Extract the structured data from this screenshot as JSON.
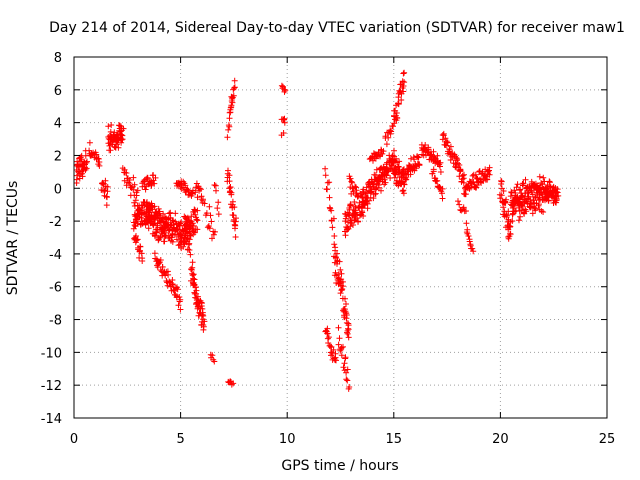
{
  "chart_data": {
    "type": "scatter",
    "title": "Day 214 of 2014, Sidereal Day-to-day VTEC variation (SDTVAR) for receiver maw1",
    "xlabel": "GPS time / hours",
    "ylabel": "SDTVAR / TECUs",
    "xlim": [
      0,
      25
    ],
    "ylim": [
      -14,
      8
    ],
    "xticks": [
      0,
      5,
      10,
      15,
      20,
      25
    ],
    "yticks": [
      -14,
      -12,
      -10,
      -8,
      -6,
      -4,
      -2,
      0,
      2,
      4,
      6,
      8
    ],
    "grid": true,
    "marker": "+",
    "color": "#ff0000",
    "series": [
      {
        "name": "SDTVAR",
        "segments": [
          {
            "x0": 0.1,
            "x1": 0.6,
            "y_start": 1.0,
            "y_end": 1.6,
            "spread": 0.9,
            "n": 40
          },
          {
            "x0": 0.7,
            "x1": 1.2,
            "y_start": 2.4,
            "y_end": 1.5,
            "spread": 0.5,
            "n": 20
          },
          {
            "x0": 1.3,
            "x1": 1.6,
            "y_start": 0.5,
            "y_end": -0.6,
            "spread": 0.8,
            "n": 16
          },
          {
            "x0": 1.6,
            "x1": 2.3,
            "y_start": 3.0,
            "y_end": 3.2,
            "spread": 0.9,
            "n": 60
          },
          {
            "x0": 2.3,
            "x1": 3.0,
            "y_start": 1.0,
            "y_end": -0.4,
            "spread": 0.7,
            "n": 25
          },
          {
            "x0": 2.8,
            "x1": 3.6,
            "y_start": -1.8,
            "y_end": -1.5,
            "spread": 1.0,
            "n": 70
          },
          {
            "x0": 2.8,
            "x1": 3.2,
            "y_start": -3.0,
            "y_end": -4.2,
            "spread": 0.6,
            "n": 20
          },
          {
            "x0": 3.4,
            "x1": 4.3,
            "y_start": -1.5,
            "y_end": -2.5,
            "spread": 1.3,
            "n": 110
          },
          {
            "x0": 3.2,
            "x1": 3.8,
            "y_start": 0.1,
            "y_end": 0.6,
            "spread": 0.5,
            "n": 25
          },
          {
            "x0": 3.8,
            "x1": 5.0,
            "y_start": -4.2,
            "y_end": -6.9,
            "spread": 0.6,
            "n": 50
          },
          {
            "x0": 4.3,
            "x1": 5.5,
            "y_start": -2.2,
            "y_end": -3.0,
            "spread": 1.2,
            "n": 110
          },
          {
            "x0": 4.8,
            "x1": 5.6,
            "y_start": 0.3,
            "y_end": -0.4,
            "spread": 0.4,
            "n": 30
          },
          {
            "x0": 5.2,
            "x1": 5.8,
            "y_start": -2.6,
            "y_end": -1.8,
            "spread": 0.9,
            "n": 40
          },
          {
            "x0": 5.5,
            "x1": 6.1,
            "y_start": -5.0,
            "y_end": -8.5,
            "spread": 1.0,
            "n": 60
          },
          {
            "x0": 5.7,
            "x1": 6.1,
            "y_start": 0.2,
            "y_end": -0.8,
            "spread": 0.7,
            "n": 15
          },
          {
            "x0": 6.2,
            "x1": 6.6,
            "y_start": -1.5,
            "y_end": -2.8,
            "spread": 0.9,
            "n": 12
          },
          {
            "x0": 6.4,
            "x1": 6.6,
            "y_start": -10.2,
            "y_end": -10.4,
            "spread": 0.2,
            "n": 5
          },
          {
            "x0": 6.6,
            "x1": 6.8,
            "y_start": 0.4,
            "y_end": -1.3,
            "spread": 0.6,
            "n": 6
          },
          {
            "x0": 7.2,
            "x1": 7.4,
            "y_start": 3.3,
            "y_end": 5.5,
            "spread": 0.4,
            "n": 10
          },
          {
            "x0": 7.35,
            "x1": 7.55,
            "y_start": 4.7,
            "y_end": 6.3,
            "spread": 0.3,
            "n": 12
          },
          {
            "x0": 7.2,
            "x1": 7.6,
            "y_start": 1.0,
            "y_end": -2.7,
            "spread": 0.9,
            "n": 30
          },
          {
            "x0": 7.25,
            "x1": 7.45,
            "y_start": -11.7,
            "y_end": -12.0,
            "spread": 0.2,
            "n": 6
          },
          {
            "x0": 9.75,
            "x1": 9.9,
            "y_start": 6.2,
            "y_end": 6.0,
            "spread": 0.2,
            "n": 6
          },
          {
            "x0": 9.75,
            "x1": 9.9,
            "y_start": 4.3,
            "y_end": 4.1,
            "spread": 0.2,
            "n": 5
          },
          {
            "x0": 9.75,
            "x1": 9.85,
            "y_start": 3.3,
            "y_end": 3.4,
            "spread": 0.1,
            "n": 2
          },
          {
            "x0": 11.8,
            "x1": 12.3,
            "y_start": -8.6,
            "y_end": -10.5,
            "spread": 0.7,
            "n": 25
          },
          {
            "x0": 11.8,
            "x1": 12.2,
            "y_start": 1.0,
            "y_end": -2.5,
            "spread": 0.9,
            "n": 15
          },
          {
            "x0": 12.2,
            "x1": 12.9,
            "y_start": -4.0,
            "y_end": -8.5,
            "spread": 1.3,
            "n": 60
          },
          {
            "x0": 12.4,
            "x1": 12.9,
            "y_start": -9.0,
            "y_end": -11.8,
            "spread": 0.8,
            "n": 20
          },
          {
            "x0": 12.7,
            "x1": 13.6,
            "y_start": -2.0,
            "y_end": -1.0,
            "spread": 1.4,
            "n": 70
          },
          {
            "x0": 12.9,
            "x1": 13.3,
            "y_start": 0.6,
            "y_end": -0.4,
            "spread": 0.5,
            "n": 15
          },
          {
            "x0": 13.5,
            "x1": 15.0,
            "y_start": -0.8,
            "y_end": 1.5,
            "spread": 1.0,
            "n": 120
          },
          {
            "x0": 13.9,
            "x1": 14.5,
            "y_start": 1.8,
            "y_end": 2.2,
            "spread": 0.3,
            "n": 20
          },
          {
            "x0": 14.6,
            "x1": 15.0,
            "y_start": 2.8,
            "y_end": 3.8,
            "spread": 0.5,
            "n": 12
          },
          {
            "x0": 15.0,
            "x1": 15.5,
            "y_start": 1.2,
            "y_end": 0.3,
            "spread": 1.0,
            "n": 50
          },
          {
            "x0": 15.0,
            "x1": 15.5,
            "y_start": 4.0,
            "y_end": 6.8,
            "spread": 0.8,
            "n": 30
          },
          {
            "x0": 15.5,
            "x1": 16.2,
            "y_start": 0.8,
            "y_end": 1.8,
            "spread": 0.6,
            "n": 40
          },
          {
            "x0": 16.3,
            "x1": 17.2,
            "y_start": 2.5,
            "y_end": 1.4,
            "spread": 0.5,
            "n": 50
          },
          {
            "x0": 16.8,
            "x1": 17.3,
            "y_start": 1.0,
            "y_end": -0.4,
            "spread": 0.5,
            "n": 20
          },
          {
            "x0": 17.3,
            "x1": 18.3,
            "y_start": 3.1,
            "y_end": 0.5,
            "spread": 0.5,
            "n": 50
          },
          {
            "x0": 18.3,
            "x1": 19.5,
            "y_start": 0.0,
            "y_end": 1.0,
            "spread": 0.6,
            "n": 60
          },
          {
            "x0": 18.4,
            "x1": 18.7,
            "y_start": -2.2,
            "y_end": -3.9,
            "spread": 0.5,
            "n": 12
          },
          {
            "x0": 18.0,
            "x1": 18.4,
            "y_start": -0.9,
            "y_end": -1.4,
            "spread": 0.4,
            "n": 8
          },
          {
            "x0": 20.0,
            "x1": 20.5,
            "y_start": 0.0,
            "y_end": -3.0,
            "spread": 1.0,
            "n": 40
          },
          {
            "x0": 20.5,
            "x1": 22.0,
            "y_start": -1.0,
            "y_end": -0.3,
            "spread": 1.3,
            "n": 160
          },
          {
            "x0": 22.0,
            "x1": 22.7,
            "y_start": 0.0,
            "y_end": -0.6,
            "spread": 0.8,
            "n": 60
          }
        ]
      }
    ]
  }
}
